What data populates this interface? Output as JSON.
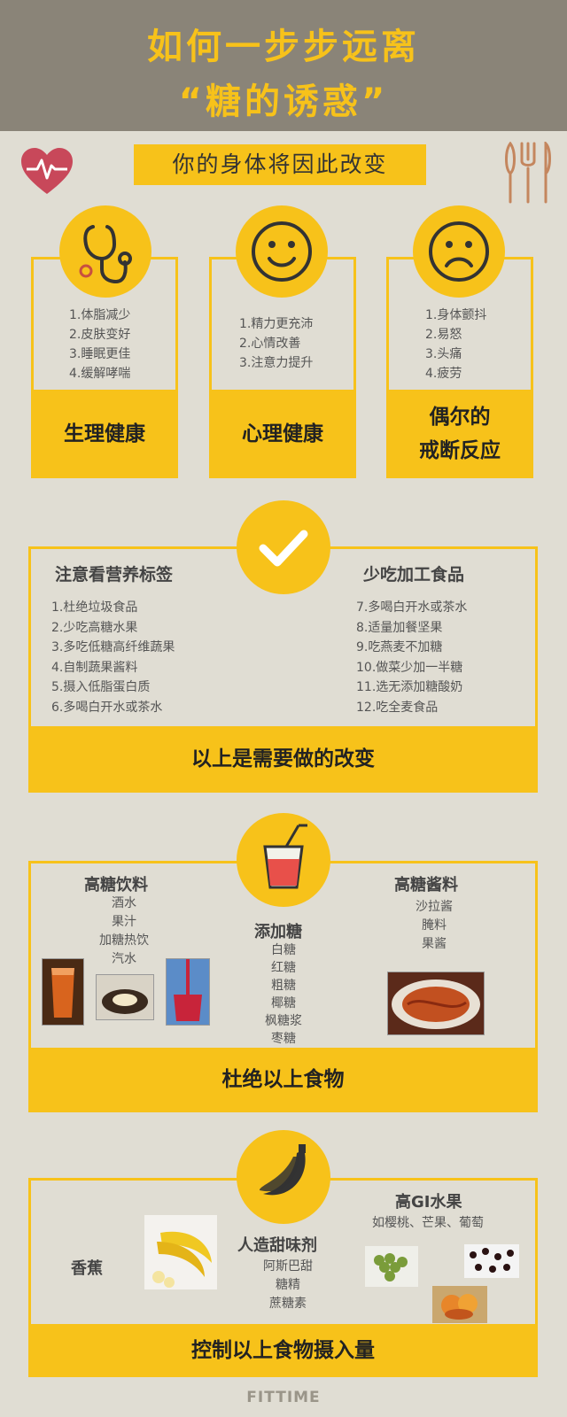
{
  "header": {
    "title_line1": "如何一步步远离",
    "title_line2": "“糖的诱惑”"
  },
  "subtitle": "你的身体将因此改变",
  "icons": {
    "top_left": "heart-pulse-icon",
    "top_right": "utensils-icon"
  },
  "benefits": [
    {
      "icon": "stethoscope-icon",
      "items": [
        "1.体脂减少",
        "2.皮肤变好",
        "3.睡眠更佳",
        "4.缓解哮喘"
      ],
      "label": "生理健康"
    },
    {
      "icon": "smile-icon",
      "items": [
        "1.精力更充沛",
        "2.心情改善",
        "3.注意力提升"
      ],
      "label": "心理健康"
    },
    {
      "icon": "frown-icon",
      "items": [
        "1.身体颤抖",
        "2.易怒",
        "3.头痛",
        "4.疲劳"
      ],
      "label_line1": "偶尔的",
      "label_line2": "戒断反应"
    }
  ],
  "changes": {
    "icon": "checkmark-icon",
    "left_title": "注意看营养标签",
    "right_title": "少吃加工食品",
    "left_items": [
      "1.杜绝垃圾食品",
      "2.少吃高糖水果",
      "3.多吃低糖高纤维蔬果",
      "4.自制蔬果酱料",
      "5.摄入低脂蛋白质",
      "6.多喝白开水或茶水"
    ],
    "right_items": [
      "7.多喝白开水或茶水",
      "8.适量加餐坚果",
      "9.吃燕麦不加糖",
      "10.做菜少加一半糖",
      "11.选无添加糖酸奶",
      "12.吃全麦食品"
    ],
    "footer": "以上是需要做的改变"
  },
  "avoid": {
    "icon": "drink-cup-icon",
    "drinks_title": "高糖饮料",
    "drinks": [
      "酒水",
      "果汁",
      "加糖热饮",
      "汽水"
    ],
    "sugar_title": "添加糖",
    "sugars": [
      "白糖",
      "红糖",
      "粗糖",
      "椰糖",
      "枫糖浆",
      "枣糖"
    ],
    "sauce_title": "高糖酱料",
    "sauces": [
      "沙拉酱",
      "腌料",
      "果酱"
    ],
    "footer": "杜绝以上食物"
  },
  "control": {
    "icon": "banana-icon",
    "banana_label": "香蕉",
    "sweetener_title": "人造甜味剂",
    "sweeteners": [
      "阿斯巴甜",
      "糖精",
      "蔗糖素"
    ],
    "fruit_title": "高GI水果",
    "fruit_desc": "如樱桃、芒果、葡萄",
    "footer": "控制以上食物摄入量"
  },
  "brand": "FITTIME",
  "colors": {
    "accent": "#f7c21a",
    "background": "#e0ddd3",
    "header": "#8a8478"
  }
}
